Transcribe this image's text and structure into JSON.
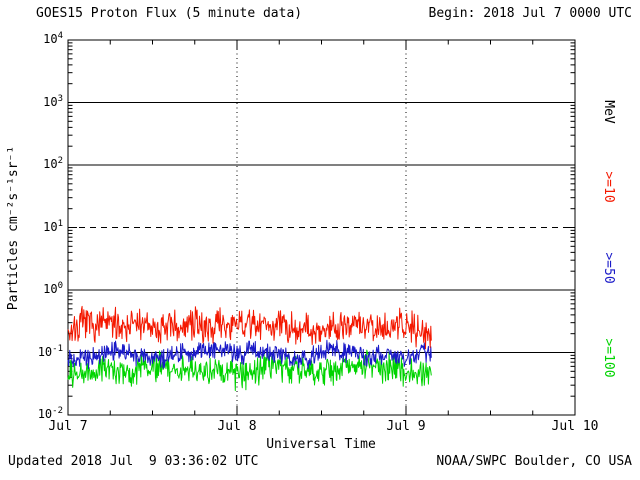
{
  "header": {
    "title": "GOES15 Proton Flux (5 minute data)",
    "begin": "Begin: 2018 Jul 7 0000 UTC"
  },
  "footer": {
    "updated": "Updated 2018 Jul  9 03:36:02 UTC",
    "credit": "NOAA/SWPC Boulder, CO USA"
  },
  "axes": {
    "x_label": "Universal Time",
    "y_label": "Particles cm⁻²s⁻¹sr⁻¹"
  },
  "right_axis": {
    "unit": "MeV"
  },
  "chart_data": {
    "type": "line",
    "title": "GOES15 Proton Flux (5 minute data)",
    "xlabel": "Universal Time",
    "ylabel": "Particles cm-2 s-1 sr-1",
    "x_tick_labels": [
      "Jul 7",
      "Jul 8",
      "Jul 9",
      "Jul 10"
    ],
    "x_range_days": [
      0,
      3
    ],
    "y_log_range": [
      -2,
      4
    ],
    "y_tick_exponents": [
      4,
      3,
      2,
      1,
      0,
      -1,
      -2
    ],
    "grid": {
      "hlines_solid": [
        1000,
        100,
        1,
        0.1
      ],
      "hlines_dashed": [
        10
      ],
      "vlines_dotted_days": [
        1,
        2
      ]
    },
    "sample_interval_minutes": 5,
    "data_end_day": 2.15,
    "series": [
      {
        "label": ">=10",
        "color": "#f41800",
        "log_mean": -0.62,
        "log_amp": 0.3,
        "approx_mean_flux": 0.24,
        "approx_range": [
          0.12,
          0.5
        ]
      },
      {
        "label": ">=50",
        "color": "#1a1ac8",
        "log_mean": -1.02,
        "log_amp": 0.18,
        "approx_mean_flux": 0.095,
        "approx_range": [
          0.06,
          0.16
        ]
      },
      {
        "label": ">=100",
        "color": "#00d400",
        "log_mean": -1.27,
        "log_amp": 0.28,
        "approx_mean_flux": 0.054,
        "approx_range": [
          0.027,
          0.1
        ]
      }
    ],
    "legend_position": "right"
  }
}
